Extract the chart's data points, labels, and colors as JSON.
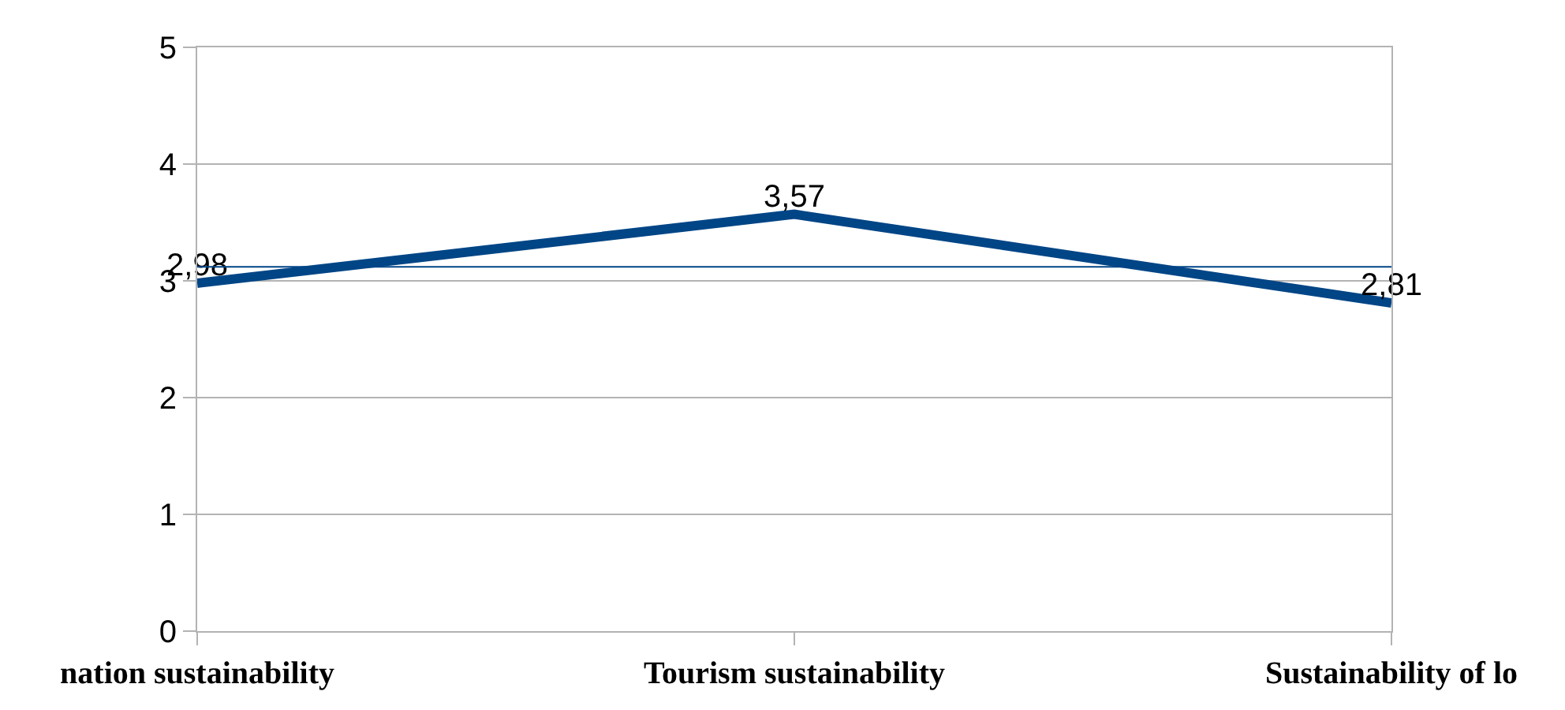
{
  "chart_data": {
    "type": "line",
    "categories": [
      "nation sustainability",
      "Tourism sustainability",
      "Sustainability of lo"
    ],
    "series": [
      {
        "color": "#004586",
        "values": [
          2.98,
          3.57,
          2.81
        ],
        "value_labels": [
          "2,98",
          "3,57",
          "2,81"
        ]
      }
    ],
    "ylim": [
      0,
      5
    ],
    "yticks": [
      0,
      1,
      2,
      3,
      4,
      5
    ],
    "ref_lines": [
      {
        "axis": "y",
        "value": 3.12,
        "color": "#004586",
        "line_style": "solid"
      }
    ],
    "grid": "y",
    "marker": "none",
    "line_style": "solid"
  }
}
